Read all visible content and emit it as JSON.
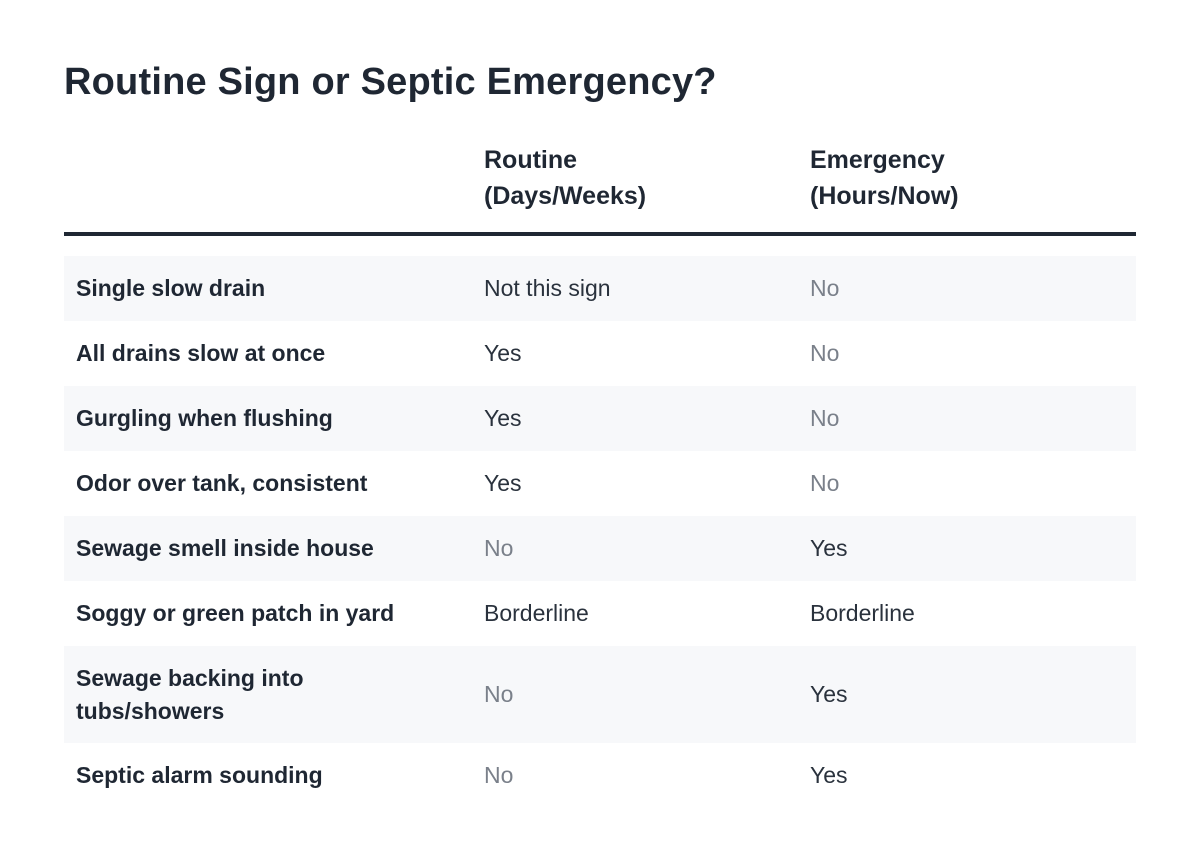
{
  "title": "Routine Sign or Septic Emergency?",
  "table": {
    "headers": [
      {
        "lines": [
          "",
          ""
        ]
      },
      {
        "lines": [
          "Routine",
          "(Days/Weeks)"
        ]
      },
      {
        "lines": [
          "Emergency",
          "(Hours/Now)"
        ]
      }
    ],
    "rows": [
      {
        "sign_lines": [
          "Single slow drain"
        ],
        "routine": "Not this sign",
        "emergency": "No"
      },
      {
        "sign_lines": [
          "All drains slow at once"
        ],
        "routine": "Yes",
        "emergency": "No"
      },
      {
        "sign_lines": [
          "Gurgling when flushing"
        ],
        "routine": "Yes",
        "emergency": "No"
      },
      {
        "sign_lines": [
          "Odor over tank, consistent"
        ],
        "routine": "Yes",
        "emergency": "No"
      },
      {
        "sign_lines": [
          "Sewage smell inside house"
        ],
        "routine": "No",
        "emergency": "Yes"
      },
      {
        "sign_lines": [
          "Soggy or green patch in yard"
        ],
        "routine": "Borderline",
        "emergency": "Borderline"
      },
      {
        "sign_lines": [
          "Sewage backing into",
          "tubs/showers"
        ],
        "routine": "No",
        "emergency": "Yes"
      },
      {
        "sign_lines": [
          "Septic alarm sounding"
        ],
        "routine": "No",
        "emergency": "Yes"
      }
    ]
  },
  "colors": {
    "text": "#1f2733",
    "muted": "#7a808a",
    "row_shade": "#f7f8fa",
    "rule": "#1f2733"
  }
}
